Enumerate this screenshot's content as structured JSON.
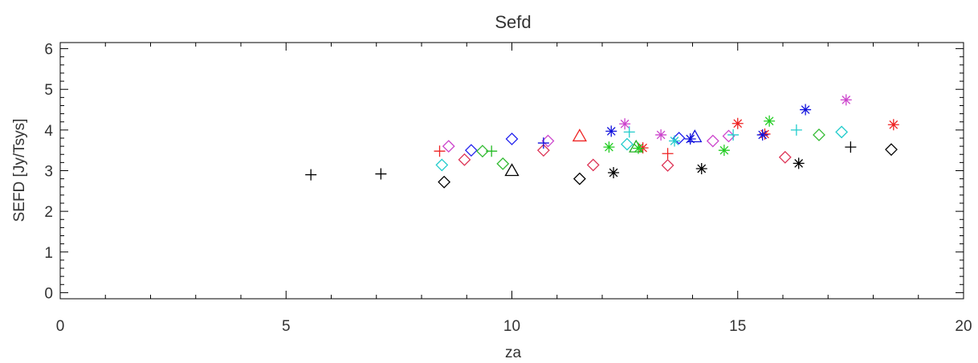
{
  "chart_data": {
    "type": "scatter",
    "title": "Sefd",
    "xlabel": "za",
    "ylabel": "SEFD [Jy/Tsys]",
    "xlim": [
      0,
      20
    ],
    "ylim": [
      -0.15,
      6.15
    ],
    "x_ticks": [
      0,
      5,
      10,
      15,
      20
    ],
    "y_ticks": [
      0,
      1,
      2,
      3,
      4,
      5,
      6
    ],
    "grid": false,
    "legend": "none",
    "series": [
      {
        "marker": "plus",
        "color": "#000000",
        "points": [
          [
            5.55,
            2.9
          ],
          [
            7.1,
            2.92
          ],
          [
            17.5,
            3.58
          ]
        ]
      },
      {
        "marker": "diamond",
        "color": "#000000",
        "points": [
          [
            8.5,
            2.72
          ],
          [
            11.5,
            2.8
          ],
          [
            18.4,
            3.52
          ]
        ]
      },
      {
        "marker": "triangle",
        "color": "#000000",
        "points": [
          [
            10.0,
            3.0
          ]
        ]
      },
      {
        "marker": "asterisk",
        "color": "#000000",
        "points": [
          [
            12.25,
            2.95
          ],
          [
            14.2,
            3.05
          ],
          [
            16.35,
            3.18
          ]
        ]
      },
      {
        "marker": "plus",
        "color": "#ee2222",
        "points": [
          [
            8.4,
            3.48
          ],
          [
            13.45,
            3.42
          ]
        ]
      },
      {
        "marker": "diamond",
        "color": "#dd3355",
        "points": [
          [
            8.95,
            3.27
          ],
          [
            10.7,
            3.5
          ],
          [
            11.8,
            3.14
          ],
          [
            13.45,
            3.13
          ],
          [
            16.05,
            3.33
          ]
        ]
      },
      {
        "marker": "triangle",
        "color": "#ee2222",
        "points": [
          [
            11.5,
            3.85
          ]
        ]
      },
      {
        "marker": "asterisk",
        "color": "#ee2222",
        "points": [
          [
            12.9,
            3.56
          ],
          [
            15.0,
            4.16
          ],
          [
            15.6,
            3.9
          ],
          [
            18.45,
            4.13
          ]
        ]
      },
      {
        "marker": "diamond",
        "color": "#cc44cc",
        "points": [
          [
            8.6,
            3.6
          ],
          [
            10.8,
            3.73
          ],
          [
            14.45,
            3.73
          ],
          [
            14.8,
            3.85
          ]
        ]
      },
      {
        "marker": "asterisk",
        "color": "#cc44cc",
        "points": [
          [
            12.5,
            4.15
          ],
          [
            13.3,
            3.88
          ],
          [
            17.4,
            4.74
          ]
        ]
      },
      {
        "marker": "plus",
        "color": "#1111dd",
        "points": [
          [
            10.7,
            3.68
          ]
        ]
      },
      {
        "marker": "diamond",
        "color": "#2222ee",
        "points": [
          [
            9.1,
            3.5
          ],
          [
            10.0,
            3.78
          ],
          [
            13.7,
            3.8
          ]
        ]
      },
      {
        "marker": "triangle",
        "color": "#1111dd",
        "points": [
          [
            14.05,
            3.83
          ]
        ]
      },
      {
        "marker": "asterisk",
        "color": "#1111dd",
        "points": [
          [
            12.2,
            3.97
          ],
          [
            13.95,
            3.78
          ],
          [
            15.55,
            3.88
          ],
          [
            16.5,
            4.5
          ]
        ]
      },
      {
        "marker": "plus",
        "color": "#22bb22",
        "points": [
          [
            9.55,
            3.48
          ]
        ]
      },
      {
        "marker": "diamond",
        "color": "#33bb33",
        "points": [
          [
            9.35,
            3.48
          ],
          [
            9.8,
            3.17
          ],
          [
            16.8,
            3.88
          ]
        ]
      },
      {
        "marker": "triangle",
        "color": "#22aa22",
        "points": [
          [
            12.75,
            3.58
          ]
        ]
      },
      {
        "marker": "asterisk",
        "color": "#22cc22",
        "points": [
          [
            12.15,
            3.58
          ],
          [
            12.8,
            3.55
          ],
          [
            14.7,
            3.5
          ],
          [
            15.7,
            4.22
          ]
        ]
      },
      {
        "marker": "plus",
        "color": "#22cccc",
        "points": [
          [
            12.6,
            3.95
          ],
          [
            14.9,
            3.88
          ],
          [
            16.3,
            4.0
          ]
        ]
      },
      {
        "marker": "diamond",
        "color": "#22cccc",
        "points": [
          [
            8.45,
            3.14
          ],
          [
            12.55,
            3.65
          ],
          [
            17.3,
            3.95
          ]
        ]
      },
      {
        "marker": "asterisk",
        "color": "#22cccc",
        "points": [
          [
            13.6,
            3.73
          ]
        ]
      }
    ]
  }
}
